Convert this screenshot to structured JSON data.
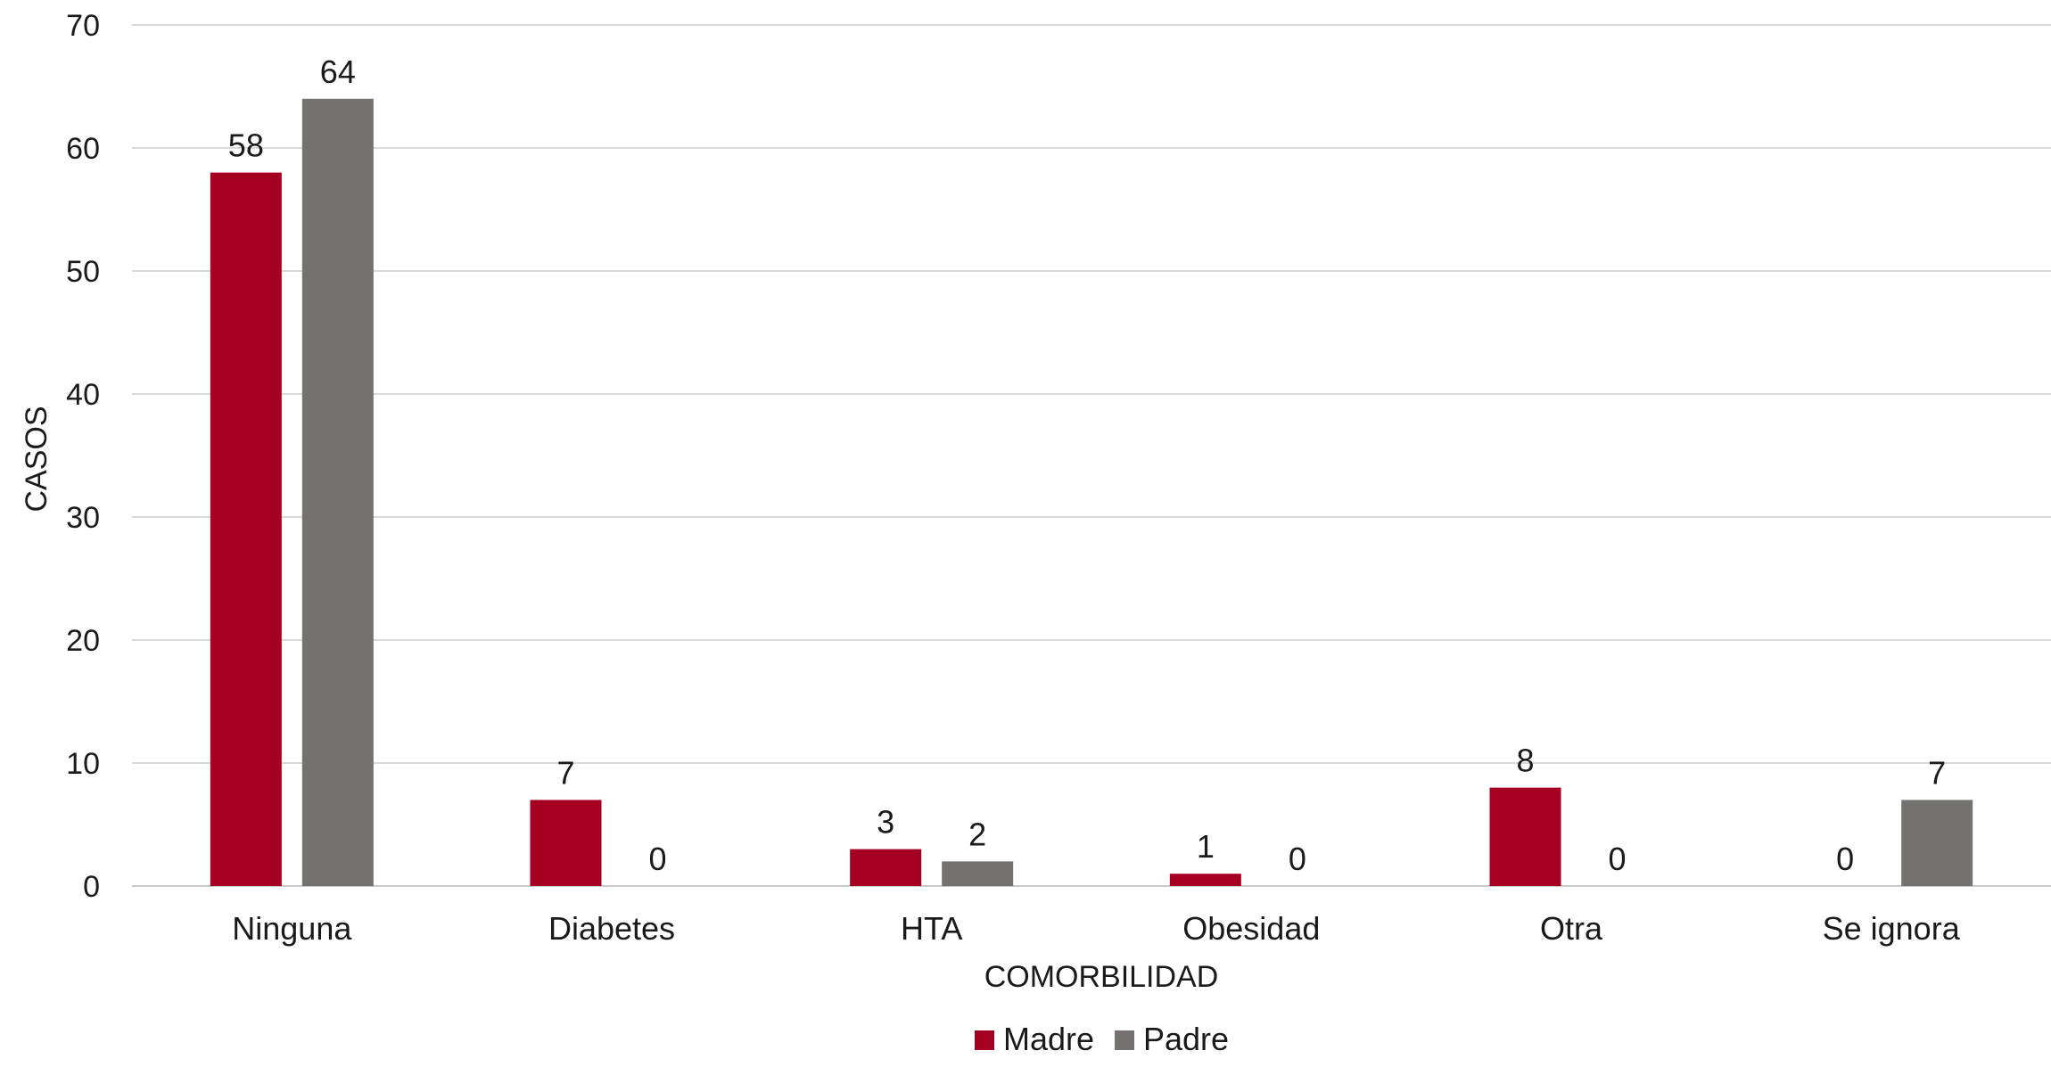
{
  "chart_data": {
    "type": "bar",
    "title": "",
    "xlabel": "COMORBILIDAD",
    "ylabel": "CASOS",
    "ylim": [
      0,
      70
    ],
    "yticks": [
      0,
      10,
      20,
      30,
      40,
      50,
      60,
      70
    ],
    "grid": true,
    "legend_position": "bottom",
    "categories": [
      "Ninguna",
      "Diabetes",
      "HTA",
      "Obesidad",
      "Otra",
      "Se ignora"
    ],
    "series": [
      {
        "name": "Madre",
        "color": "#a50021",
        "values": [
          58,
          7,
          3,
          1,
          8,
          0
        ]
      },
      {
        "name": "Padre",
        "color": "#767171",
        "values": [
          64,
          0,
          2,
          0,
          0,
          7
        ]
      }
    ]
  }
}
